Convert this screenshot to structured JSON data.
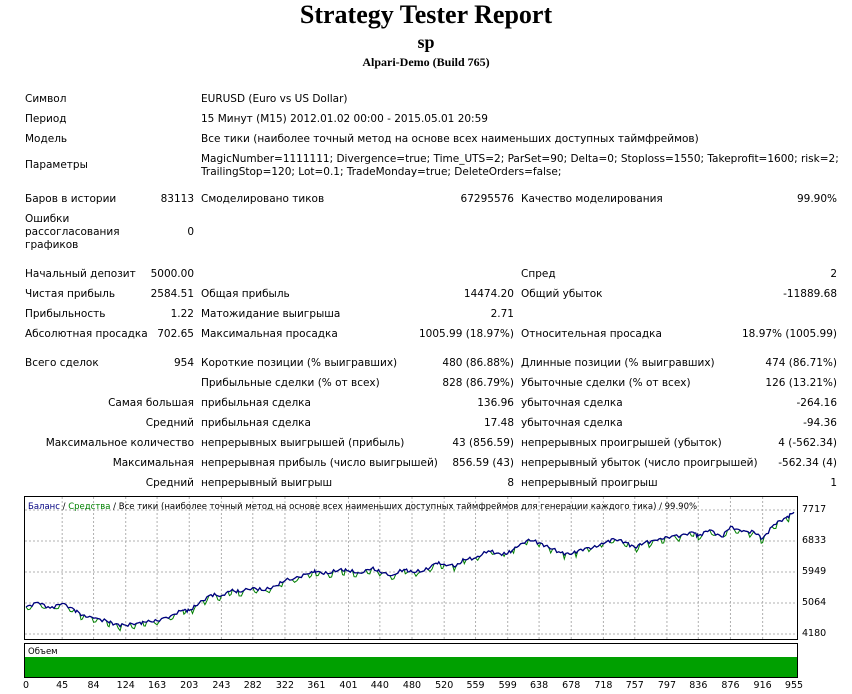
{
  "header": {
    "title": "Strategy Tester Report",
    "subtitle": "sp",
    "server": "Alpari-Demo (Build 765)"
  },
  "info": {
    "symbol_label": "Символ",
    "symbol_value": "EURUSD (Euro vs US Dollar)",
    "period_label": "Период",
    "period_value": "15 Минут (M15) 2012.01.02 00:00 - 2015.05.01 20:59",
    "model_label": "Модель",
    "model_value": "Все тики (наиболее точный метод на основе всех наименьших доступных таймфреймов)",
    "params_label": "Параметры",
    "params_line1": "MagicNumber=1111111; Divergence=true; Time_UTS=2; ParSet=90; Delta=0; Stoploss=1550; Takeprofit=1600; risk=2;",
    "params_line2": "TrailingStop=120; Lot=0.1; TradeMonday=true; DeleteOrders=false;"
  },
  "stats": {
    "bars_label": "Баров в истории",
    "bars_value": "83113",
    "ticks_label": "Смоделировано тиков",
    "ticks_value": "67295576",
    "quality_label": "Качество моделирования",
    "quality_value": "99.90%",
    "errors_label_1": "Ошибки",
    "errors_label_2": "рассогласования",
    "errors_label_3": "графиков",
    "errors_value": "0",
    "deposit_label": "Начальный депозит",
    "deposit_value": "5000.00",
    "spread_label": "Спред",
    "spread_value": "2",
    "net_profit_label": "Чистая прибыль",
    "net_profit_value": "2584.51",
    "gross_profit_label": "Общая прибыль",
    "gross_profit_value": "14474.20",
    "gross_loss_label": "Общий убыток",
    "gross_loss_value": "-11889.68",
    "profit_factor_label": "Прибыльность",
    "profit_factor_value": "1.22",
    "expected_payoff_label": "Матожидание выигрыша",
    "expected_payoff_value": "2.71",
    "abs_dd_label": "Абсолютная просадка",
    "abs_dd_value": "702.65",
    "max_dd_label": "Максимальная просадка",
    "max_dd_value": "1005.99 (18.97%)",
    "rel_dd_label": "Относительная просадка",
    "rel_dd_value": "18.97% (1005.99)",
    "total_trades_label": "Всего сделок",
    "total_trades_value": "954",
    "short_label": "Короткие позиции (% выигравших)",
    "short_value": "480 (86.88%)",
    "long_label": "Длинные позиции (% выигравших)",
    "long_value": "474 (86.71%)",
    "profit_trades_label": "Прибыльные сделки (% от всех)",
    "profit_trades_value": "828 (86.79%)",
    "loss_trades_label": "Убыточные сделки (% от всех)",
    "loss_trades_value": "126 (13.21%)",
    "largest_label": "Самая большая",
    "largest_profit_label": "прибыльная сделка",
    "largest_profit_value": "136.96",
    "largest_loss_label": "убыточная сделка",
    "largest_loss_value": "-264.16",
    "average_label": "Средний",
    "average_profit_label": "прибыльная сделка",
    "average_profit_value": "17.48",
    "average_loss_label": "убыточная сделка",
    "average_loss_value": "-94.36",
    "max_count_label": "Максимальное количество",
    "max_cons_wins_label": "непрерывных выигрышей (прибыль)",
    "max_cons_wins_value": "43 (856.59)",
    "max_cons_losses_label": "непрерывных проигрышей (убыток)",
    "max_cons_losses_value": "4 (-562.34)",
    "maximal_label": "Максимальная",
    "max_cons_profit_label": "непрерывная прибыль (число выигрышей)",
    "max_cons_profit_value": "856.59 (43)",
    "max_cons_loss_label": "непрерывный убыток (число проигрышей)",
    "max_cons_loss_value": "-562.34 (4)",
    "avg_cons_label": "Средний",
    "avg_cons_wins_label": "непрерывный выигрыш",
    "avg_cons_wins_value": "8",
    "avg_cons_losses_label": "непрерывный проигрыш",
    "avg_cons_losses_value": "1"
  },
  "chart_data": {
    "type": "line",
    "legend_balance": "Баланс",
    "legend_sep": " / ",
    "legend_equity": "Средства",
    "legend_rest": " / Все тики (наиболее точный метод на основе всех наименьших доступных таймфреймов для генерации каждого тика) / 99.90%",
    "volume_label": "Объем",
    "ylim": [
      4180,
      7717
    ],
    "y_ticks": [
      "7717",
      "6833",
      "5949",
      "5064",
      "4180"
    ],
    "x_ticks": [
      "0",
      "45",
      "84",
      "124",
      "163",
      "203",
      "243",
      "282",
      "322",
      "361",
      "401",
      "440",
      "480",
      "520",
      "559",
      "599",
      "638",
      "678",
      "718",
      "757",
      "797",
      "836",
      "876",
      "916",
      "955"
    ],
    "xlim": [
      0,
      955
    ],
    "grid": true,
    "series": [
      {
        "color": "#000080",
        "x": [
          0,
          15,
          30,
          45,
          60,
          70,
          84,
          100,
          110,
          124,
          140,
          150,
          163,
          180,
          195,
          203,
          215,
          230,
          243,
          255,
          265,
          282,
          295,
          310,
          322,
          340,
          355,
          361,
          375,
          390,
          401,
          415,
          430,
          440,
          455,
          470,
          480,
          495,
          510,
          520,
          535,
          545,
          559,
          575,
          590,
          599,
          610,
          625,
          638,
          650,
          665,
          678,
          690,
          705,
          718,
          730,
          745,
          757,
          770,
          785,
          797,
          815,
          830,
          836,
          850,
          865,
          876,
          890,
          905,
          916,
          930,
          945,
          955
        ],
        "values": [
          4950,
          5080,
          4920,
          5050,
          4880,
          4720,
          4630,
          4560,
          4460,
          4430,
          4500,
          4520,
          4560,
          4700,
          4860,
          4850,
          5050,
          5300,
          5270,
          5420,
          5380,
          5500,
          5420,
          5550,
          5700,
          5800,
          5960,
          5950,
          5900,
          6020,
          5980,
          5920,
          6050,
          5950,
          5850,
          6020,
          5950,
          5980,
          6200,
          6170,
          6120,
          6300,
          6350,
          6550,
          6460,
          6480,
          6650,
          6880,
          6780,
          6650,
          6500,
          6450,
          6600,
          6650,
          6750,
          6900,
          6800,
          6650,
          6800,
          6850,
          6950,
          7000,
          7080,
          6980,
          7150,
          6950,
          7250,
          7100,
          7100,
          6900,
          7300,
          7500,
          7650
        ]
      }
    ]
  },
  "colors": {
    "balance": "#000080",
    "equity": "#008000",
    "volume": "#00a000",
    "grid": "#b0b0b0"
  }
}
